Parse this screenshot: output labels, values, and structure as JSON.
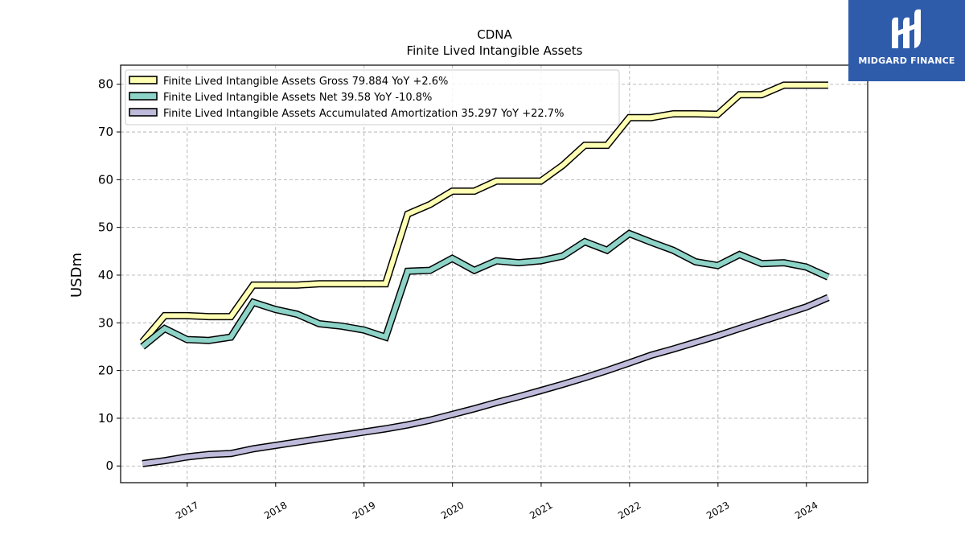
{
  "brand": {
    "name": "MIDGARD FINANCE",
    "color": "#2f5bab"
  },
  "chart_data": {
    "type": "line",
    "title": "CDNA",
    "subtitle": "Finite Lived Intangible Assets",
    "xlabel": "",
    "ylabel": "USDm",
    "ylim": [
      -3.5,
      84
    ],
    "xlim": [
      "2016-04-01",
      "2024-09-10"
    ],
    "yticks": [
      0,
      10,
      20,
      30,
      40,
      50,
      60,
      70,
      80
    ],
    "xticks": [
      "2017",
      "2018",
      "2019",
      "2020",
      "2021",
      "2022",
      "2023",
      "2024"
    ],
    "grid": true,
    "legend_position": "top-left",
    "dates": [
      "2016-06-30",
      "2016-09-30",
      "2016-12-31",
      "2017-03-31",
      "2017-06-30",
      "2017-09-30",
      "2017-12-31",
      "2018-03-31",
      "2018-06-30",
      "2018-09-30",
      "2018-12-31",
      "2019-03-31",
      "2019-06-30",
      "2019-09-30",
      "2019-12-31",
      "2020-03-31",
      "2020-06-30",
      "2020-09-30",
      "2020-12-31",
      "2021-03-31",
      "2021-06-30",
      "2021-09-30",
      "2021-12-31",
      "2022-03-31",
      "2022-06-30",
      "2022-09-30",
      "2022-12-31",
      "2023-03-31",
      "2023-06-30",
      "2023-09-30",
      "2023-12-31",
      "2024-03-31"
    ],
    "series": [
      {
        "name": "Finite Lived Intangible Assets Gross",
        "legend": "Finite Lived Intangible Assets Gross  79.884 YoY +2.6%",
        "color": "#ffffb3",
        "values": [
          26.0,
          31.5,
          31.5,
          31.3,
          31.3,
          37.9,
          37.9,
          37.9,
          38.2,
          38.2,
          38.2,
          38.2,
          52.8,
          54.8,
          57.6,
          57.6,
          59.7,
          59.7,
          59.7,
          63.0,
          67.2,
          67.2,
          73.0,
          73.0,
          73.8,
          73.8,
          73.7,
          77.8,
          77.8,
          79.8,
          79.8,
          79.8
        ]
      },
      {
        "name": "Finite Lived Intangible Assets Net",
        "legend": "Finite Lived Intangible Assets Net  39.58 YoY -10.8%",
        "color": "#8dd3c7",
        "values": [
          25.0,
          28.8,
          26.5,
          26.3,
          27.0,
          34.3,
          32.8,
          31.8,
          29.8,
          29.3,
          28.5,
          27.0,
          40.8,
          41.0,
          43.5,
          41.0,
          43.0,
          42.6,
          43.0,
          44.0,
          47.0,
          45.2,
          48.7,
          46.9,
          45.2,
          42.8,
          42.0,
          44.3,
          42.4,
          42.6,
          41.7,
          39.6
        ]
      },
      {
        "name": "Finite Lived Intangible Assets Accumulated Amortization",
        "legend": "Finite Lived Intangible Assets Accumulated Amortization  35.297 YoY +22.7%",
        "color": "#bebada",
        "values": [
          0.5,
          1.1,
          1.9,
          2.4,
          2.6,
          3.6,
          4.3,
          5.0,
          5.7,
          6.4,
          7.1,
          7.8,
          8.6,
          9.6,
          10.8,
          12.0,
          13.3,
          14.5,
          15.8,
          17.1,
          18.5,
          20.0,
          21.6,
          23.2,
          24.5,
          25.9,
          27.3,
          28.8,
          30.3,
          31.8,
          33.3,
          35.3
        ]
      }
    ]
  }
}
